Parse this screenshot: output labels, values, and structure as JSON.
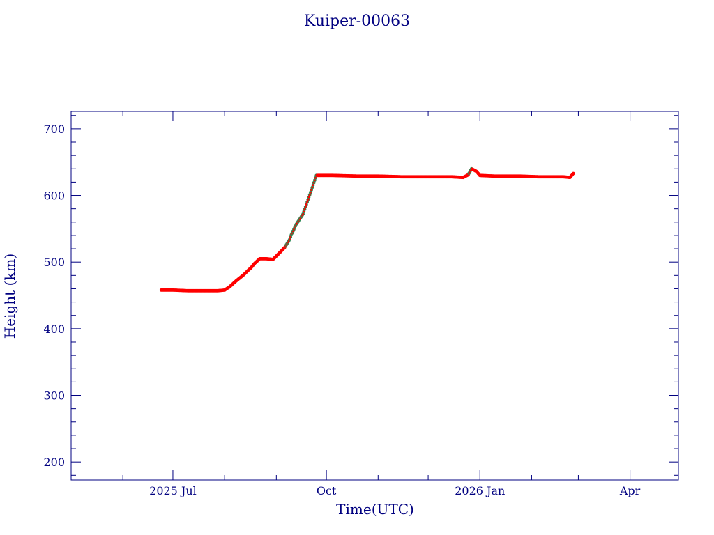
{
  "colors": {
    "axis": "#000080",
    "text": "#000080",
    "data": "#ff0000",
    "data_alt": "#2e8b57",
    "background": "#ffffff"
  },
  "chart_data": {
    "type": "scatter",
    "title": "Kuiper-00063",
    "xlabel": "Time(UTC)",
    "ylabel": "Height (km)",
    "x_scale": "time",
    "xlim": [
      "2025-05-01",
      "2026-04-30"
    ],
    "ylim": [
      173,
      726
    ],
    "x_major_ticks": [
      {
        "date": "2025-07-01",
        "label": "2025 Jul"
      },
      {
        "date": "2025-10-01",
        "label": "Oct"
      },
      {
        "date": "2026-01-01",
        "label": "2026 Jan"
      },
      {
        "date": "2026-04-01",
        "label": "Apr"
      }
    ],
    "y_major_ticks": [
      200,
      300,
      400,
      500,
      600,
      700
    ],
    "grid": false,
    "legend": "none",
    "series": [
      {
        "x": [
          "2025-06-24",
          "2025-07-01",
          "2025-07-10",
          "2025-07-20",
          "2025-07-28",
          "2025-08-01",
          "2025-08-04",
          "2025-08-08",
          "2025-08-12",
          "2025-08-17",
          "2025-08-19",
          "2025-08-22",
          "2025-08-26",
          "2025-08-30",
          "2025-09-03",
          "2025-09-06",
          "2025-09-09",
          "2025-09-10",
          "2025-09-13",
          "2025-09-17",
          "2025-09-25",
          "2025-10-05",
          "2025-10-20",
          "2025-11-01",
          "2025-11-15",
          "2025-12-01",
          "2025-12-15",
          "2025-12-22",
          "2025-12-25",
          "2025-12-27",
          "2025-12-30",
          "2026-01-01",
          "2026-01-10",
          "2026-01-25",
          "2026-02-05",
          "2026-02-16",
          "2026-02-20",
          "2026-02-24",
          "2026-02-26"
        ],
        "values": [
          458,
          458,
          457,
          457,
          457,
          458,
          463,
          472,
          480,
          492,
          498,
          505,
          505,
          504,
          514,
          522,
          534,
          541,
          557,
          572,
          630,
          630,
          629,
          629,
          628,
          628,
          628,
          627,
          631,
          640,
          636,
          630,
          629,
          629,
          628,
          628,
          628,
          627,
          633
        ]
      }
    ]
  }
}
